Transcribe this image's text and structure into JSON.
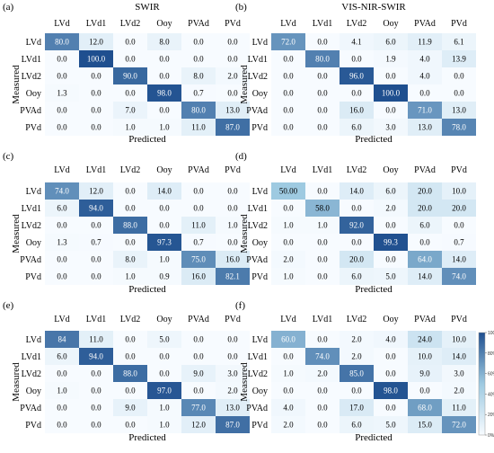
{
  "chart_data": [
    {
      "type": "heatmap",
      "panel_label": "(a)",
      "title": "SWIR",
      "xlabel": "Predicted",
      "ylabel": "Measured",
      "columns": [
        "LVd",
        "LVd1",
        "LVd2",
        "Ooy",
        "PVAd",
        "PVd"
      ],
      "rows": [
        "LVd",
        "LVd1",
        "LVd2",
        "Ooy",
        "PVAd",
        "PVd"
      ],
      "cells": [
        [
          "80.0",
          "12.0",
          "0.0",
          "8.0",
          "0.0",
          "0.0"
        ],
        [
          "0.0",
          "100.0",
          "0.0",
          "0.0",
          "0.0",
          "0.0"
        ],
        [
          "0.0",
          "0.0",
          "90.0",
          "0.0",
          "8.0",
          "2.0"
        ],
        [
          "1.3",
          "0.0",
          "0.0",
          "98.0",
          "0.7",
          "0.0"
        ],
        [
          "0.0",
          "0.0",
          "7.0",
          "0.0",
          "80.0",
          "13.0"
        ],
        [
          "0.0",
          "0.0",
          "1.0",
          "1.0",
          "11.0",
          "87.0"
        ]
      ]
    },
    {
      "type": "heatmap",
      "panel_label": "(b)",
      "title": "VIS-NIR-SWIR",
      "xlabel": "Predicted",
      "ylabel": "Measured",
      "columns": [
        "LVd",
        "LVd1",
        "LVd2",
        "Ooy",
        "PVAd",
        "PVd"
      ],
      "rows": [
        "LVd",
        "LVd1",
        "LVd2",
        "Ooy",
        "PVAd",
        "PVd"
      ],
      "cells": [
        [
          "72.0",
          "0.0",
          "4.1",
          "6.0",
          "11.9",
          "6.1"
        ],
        [
          "0.0",
          "80.0",
          "0.0",
          "1.9",
          "4.0",
          "13.9"
        ],
        [
          "0.0",
          "0.0",
          "96.0",
          "0.0",
          "4.0",
          "0.0"
        ],
        [
          "0.0",
          "0.0",
          "0.0",
          "100.0",
          "0.0",
          "0.0"
        ],
        [
          "0.0",
          "0.0",
          "16.0",
          "0.0",
          "71.0",
          "13.0"
        ],
        [
          "0.0",
          "0.0",
          "6.0",
          "3.0",
          "13.0",
          "78.0"
        ]
      ]
    },
    {
      "type": "heatmap",
      "panel_label": "(c)",
      "title": "",
      "xlabel": "Predicted",
      "ylabel": "Measured",
      "columns": [
        "LVd",
        "LVd1",
        "LVd2",
        "Ooy",
        "PVAd",
        "PVd"
      ],
      "rows": [
        "LVd",
        "LVd1",
        "LVd2",
        "Ooy",
        "PVAd",
        "PVd"
      ],
      "cells": [
        [
          "74.0",
          "12.0",
          "0.0",
          "14.0",
          "0.0",
          "0.0"
        ],
        [
          "6.0",
          "94.0",
          "0.0",
          "0.0",
          "0.0",
          "0.0"
        ],
        [
          "0.0",
          "0.0",
          "88.0",
          "0.0",
          "11.0",
          "1.0"
        ],
        [
          "1.3",
          "0.7",
          "0.0",
          "97.3",
          "0.7",
          "0.0"
        ],
        [
          "0.0",
          "0.0",
          "8.0",
          "1.0",
          "75.0",
          "16.0"
        ],
        [
          "0.0",
          "0.0",
          "1.0",
          "0.9",
          "16.0",
          "82.1"
        ]
      ]
    },
    {
      "type": "heatmap",
      "panel_label": "(d)",
      "title": "",
      "xlabel": "Predicted",
      "ylabel": "Measured",
      "columns": [
        "LVd",
        "LVd1",
        "LVd2",
        "Ooy",
        "PVAd",
        "PVd"
      ],
      "rows": [
        "LVd",
        "LVd1",
        "LVd2",
        "Ooy",
        "PVAd",
        "PVd"
      ],
      "cells": [
        [
          "50.00",
          "0.0",
          "14.0",
          "6.0",
          "20.0",
          "10.0"
        ],
        [
          "0.0",
          "58.0",
          "0.0",
          "2.0",
          "20.0",
          "20.0"
        ],
        [
          "1.0",
          "1.0",
          "92.0",
          "0.0",
          "6.0",
          "0.0"
        ],
        [
          "0.0",
          "0.0",
          "0.0",
          "99.3",
          "0.0",
          "0.7"
        ],
        [
          "2.0",
          "0.0",
          "20.0",
          "0.0",
          "64.0",
          "14.0"
        ],
        [
          "1.0",
          "0.0",
          "6.0",
          "5.0",
          "14.0",
          "74.0"
        ]
      ]
    },
    {
      "type": "heatmap",
      "panel_label": "(e)",
      "title": "",
      "xlabel": "Predicted",
      "ylabel": "Measured",
      "columns": [
        "LVd",
        "LVd1",
        "LVd2",
        "Ooy",
        "PVAd",
        "PVd"
      ],
      "rows": [
        "LVd",
        "LVd1",
        "LVd2",
        "Ooy",
        "PVAd",
        "PVd"
      ],
      "cells": [
        [
          "84",
          "11.0",
          "0.0",
          "5.0",
          "0.0",
          "0.0"
        ],
        [
          "6.0",
          "94.0",
          "0.0",
          "0.0",
          "0.0",
          "0.0"
        ],
        [
          "0.0",
          "0.0",
          "88.0",
          "0.0",
          "9.0",
          "3.0"
        ],
        [
          "1.0",
          "0.0",
          "0.0",
          "97.0",
          "0.0",
          "2.0"
        ],
        [
          "0.0",
          "0.0",
          "9.0",
          "1.0",
          "77.0",
          "13.0"
        ],
        [
          "0.0",
          "0.0",
          "0.0",
          "1.0",
          "12.0",
          "87.0"
        ]
      ]
    },
    {
      "type": "heatmap",
      "panel_label": "(f)",
      "title": "",
      "xlabel": "Predicted",
      "ylabel": "Measured",
      "columns": [
        "LVd",
        "LVd1",
        "LVd2",
        "Ooy",
        "PVAd",
        "PVd"
      ],
      "rows": [
        "LVd",
        "LVd1",
        "LVd2",
        "Ooy",
        "PVAd",
        "PVd"
      ],
      "cells": [
        [
          "60.0",
          "0.0",
          "2.0",
          "4.0",
          "24.0",
          "10.0"
        ],
        [
          "0.0",
          "74.0",
          "2.0",
          "0.0",
          "10.0",
          "14.0"
        ],
        [
          "1.0",
          "2.0",
          "85.0",
          "0.0",
          "9.0",
          "3.0"
        ],
        [
          "0.0",
          "0.0",
          "0.0",
          "98.0",
          "0.0",
          "2.0"
        ],
        [
          "4.0",
          "0.0",
          "17.0",
          "0.0",
          "68.0",
          "11.0"
        ],
        [
          "2.0",
          "0.0",
          "6.0",
          "5.0",
          "15.0",
          "72.0"
        ]
      ]
    }
  ],
  "colorbar": {
    "ticks": [
      "100%",
      "80%",
      "60%",
      "40%",
      "20%",
      "0%"
    ]
  },
  "colors": {
    "low": "#f7fbff",
    "mid": "#9ecae1",
    "high": "#1f4f8f",
    "text": "#000000",
    "text_on_dark": "#ffffff"
  }
}
